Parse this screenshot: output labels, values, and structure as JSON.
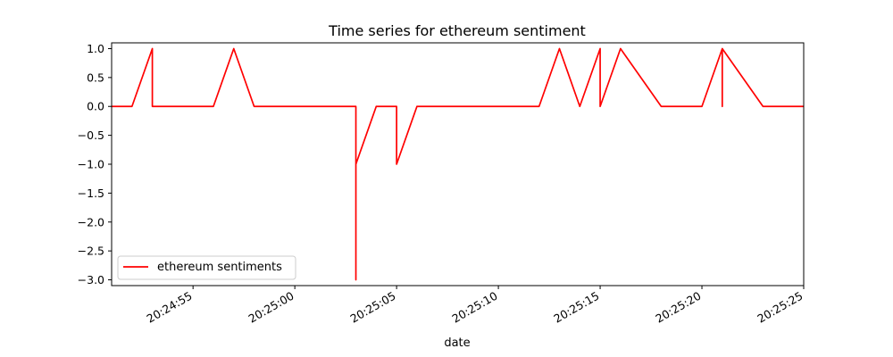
{
  "chart_data": {
    "type": "line",
    "title": "Time series for ethereum sentiment",
    "xlabel": "date",
    "ylabel": "",
    "x_ticks": [
      "20:24:55",
      "20:25:00",
      "20:25:05",
      "20:25:10",
      "20:25:15",
      "20:25:20",
      "20:25:25"
    ],
    "y_ticks": [
      "1.0",
      "0.5",
      "0.0",
      "−0.5",
      "−1.0",
      "−1.5",
      "−2.0",
      "−2.5",
      "−3.0"
    ],
    "xlim": [
      "20:24:51",
      "20:25:25"
    ],
    "ylim": [
      -3.1,
      1.1
    ],
    "grid": false,
    "legend_position": "lower-left",
    "series": [
      {
        "name": "ethereum sentiments",
        "color": "#ff0000",
        "x": [
          "20:24:51",
          "20:24:52",
          "20:24:53",
          "20:24:53",
          "20:24:56",
          "20:24:57",
          "20:24:58",
          "20:25:03",
          "20:25:03",
          "20:25:03",
          "20:25:04",
          "20:25:05",
          "20:25:05",
          "20:25:06",
          "20:25:12",
          "20:25:13",
          "20:25:14",
          "20:25:15",
          "20:25:15",
          "20:25:16",
          "20:25:18",
          "20:25:20",
          "20:25:21",
          "20:25:21",
          "20:25:21",
          "20:25:23",
          "20:25:25"
        ],
        "values": [
          0,
          0,
          1,
          0,
          0,
          1,
          0,
          0,
          -3,
          -1,
          0,
          0,
          -1,
          0,
          0,
          1,
          0,
          1,
          0,
          1,
          0,
          0,
          1,
          0,
          1,
          0,
          0
        ]
      }
    ]
  }
}
